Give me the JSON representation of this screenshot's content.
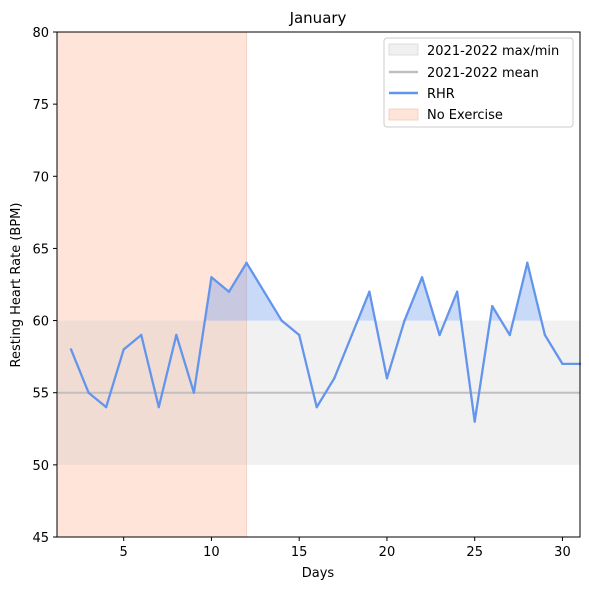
{
  "chart_data": {
    "type": "line",
    "title": "January",
    "xlabel": "Days",
    "ylabel": "Resting Heart Rate (BPM)",
    "xlim": [
      1.2,
      31
    ],
    "ylim": [
      45,
      80
    ],
    "xticks": [
      5,
      10,
      15,
      20,
      25,
      30
    ],
    "yticks": [
      45,
      50,
      55,
      60,
      65,
      70,
      75,
      80
    ],
    "grid": false,
    "legend_position": "top-right",
    "series": [
      {
        "name": "RHR",
        "color": "#6495ED",
        "x": [
          2,
          3,
          4,
          5,
          6,
          7,
          8,
          9,
          10,
          11,
          12,
          13,
          14,
          15,
          16,
          17,
          18,
          19,
          20,
          21,
          22,
          23,
          24,
          25,
          26,
          27,
          28,
          29,
          30,
          31
        ],
        "values": [
          58,
          55,
          54,
          58,
          59,
          54,
          59,
          55,
          63,
          62,
          64,
          62,
          60,
          59,
          54,
          56,
          59,
          62,
          56,
          60,
          63,
          59,
          62,
          53,
          61,
          59,
          64,
          59,
          57,
          57
        ]
      }
    ],
    "band": {
      "name": "2021-2022 max/min",
      "min": 50,
      "max": 60,
      "color": "#f0f0f0"
    },
    "mean_line": {
      "name": "2021-2022 mean",
      "value": 55,
      "color": "#c0c0c0"
    },
    "no_exercise": {
      "name": "No Exercise",
      "from": 1.2,
      "to": 12,
      "color": "#FFE4DA"
    }
  }
}
